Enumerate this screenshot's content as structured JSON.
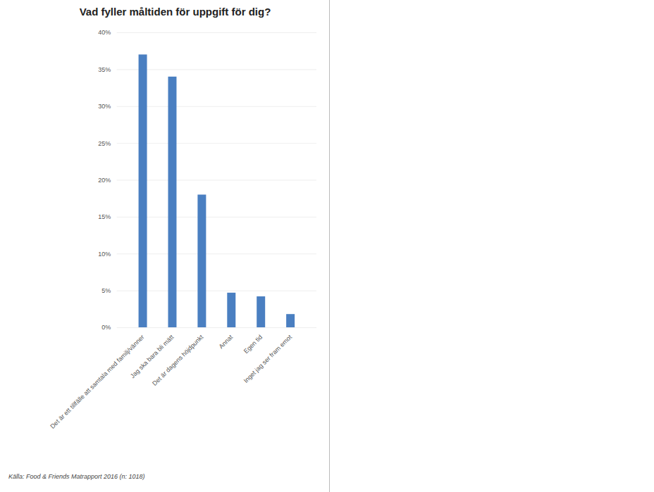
{
  "chart_data": {
    "type": "bar",
    "title": "Vad fyller måltiden för uppgift för dig?",
    "source": "Källa: Food & Friends Matrapport 2016 (n: 1018)",
    "categories": [
      "Det är ett tillfälle att samtala med familj/vänner",
      "Jag ska bara bli mätt",
      "Det är dagens höjdpunkt",
      "Annat",
      "Egen tid",
      "Inget jag ser fram emot"
    ],
    "values": [
      37,
      34,
      18,
      4.7,
      4.2,
      1.8
    ],
    "color": "#4a7fc1",
    "ylim": [
      0,
      40
    ],
    "yticks": [
      {
        "value": 0,
        "label": "0%"
      },
      {
        "value": 5,
        "label": "5%"
      },
      {
        "value": 10,
        "label": "10%"
      },
      {
        "value": 15,
        "label": "15%"
      },
      {
        "value": 20,
        "label": "20%"
      },
      {
        "value": 25,
        "label": "25%"
      },
      {
        "value": 30,
        "label": "30%"
      },
      {
        "value": 35,
        "label": "35%"
      },
      {
        "value": 40,
        "label": "40%"
      }
    ],
    "grid": true
  }
}
